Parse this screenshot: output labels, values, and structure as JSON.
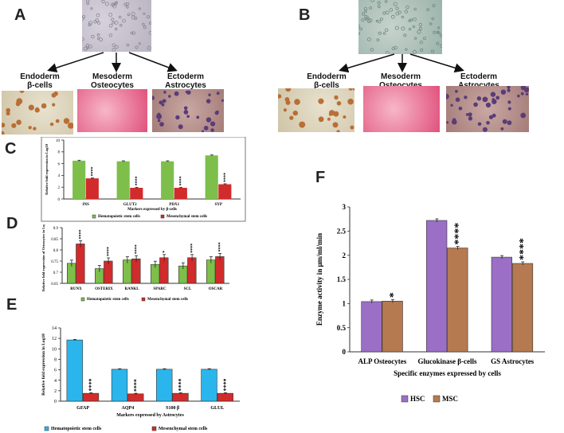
{
  "panels": {
    "A": {
      "letter": "A",
      "endoderm": {
        "germ": "Endoderm",
        "cell": "β-cells"
      },
      "mesoderm": {
        "germ": "Mesoderm",
        "cell": "Osteocytes"
      },
      "ectoderm": {
        "germ": "Ectoderm",
        "cell": "Astrocytes"
      }
    },
    "B": {
      "letter": "B",
      "endoderm": {
        "germ": "Endoderm",
        "cell": "β-cells"
      },
      "mesoderm": {
        "germ": "Mesoderm",
        "cell": "Osteocytes"
      },
      "ectoderm": {
        "germ": "Ectoderm",
        "cell": "Astrocytes"
      }
    },
    "C": {
      "letter": "C"
    },
    "D": {
      "letter": "D"
    },
    "E": {
      "letter": "E"
    },
    "F": {
      "letter": "F"
    }
  },
  "colors": {
    "green": "#7dbf4a",
    "red": "#d12b2b",
    "blue": "#2ab6ec",
    "purple": "#9b6fc6",
    "brown": "#b57a4f"
  },
  "chart_data": [
    {
      "id": "C",
      "type": "bar",
      "categories": [
        "INS",
        "GLUT2",
        "PDX1",
        "SYP"
      ],
      "series": [
        {
          "name": "Hematopoietic stem cells",
          "values": [
            6.5,
            6.4,
            6.4,
            7.4
          ]
        },
        {
          "name": "Mesenchymal stem cells",
          "values": [
            3.5,
            1.9,
            1.9,
            2.5
          ]
        }
      ],
      "significance": [
        "****",
        "****",
        "****",
        "****"
      ],
      "xlabel": "Markers expressed by β-cells",
      "ylabel": "Relative fold expression in Log10",
      "ylim": [
        0,
        10
      ],
      "yticks": [
        0,
        2,
        4,
        6,
        8,
        10
      ],
      "legend": "bottom"
    },
    {
      "id": "D",
      "type": "bar",
      "categories": [
        "RUNX",
        "OSTERIX",
        "RANKL",
        "SPARC",
        "SCL",
        "OSCAR"
      ],
      "series": [
        {
          "name": "Hematopoietic stem cells",
          "values": [
            0.74,
            0.716,
            0.755,
            0.735,
            0.728,
            0.755
          ]
        },
        {
          "name": "Mesenchymal stem cells",
          "values": [
            0.827,
            0.75,
            0.76,
            0.765,
            0.765,
            0.77
          ]
        }
      ],
      "significance": [
        "****",
        "****",
        "****",
        "*",
        "****",
        "****"
      ],
      "xlabel": "",
      "ylabel": "Relative fold expression of Osteocytes in Log10",
      "ylim": [
        0.65,
        0.9
      ],
      "yticks": [
        0.65,
        0.7,
        0.75,
        0.8,
        0.85,
        0.9
      ],
      "legend": "bottom"
    },
    {
      "id": "E",
      "type": "bar",
      "categories": [
        "GFAP",
        "AQP4",
        "S100 β",
        "GLUL"
      ],
      "series": [
        {
          "name": "Hematopoietic stem cells",
          "values": [
            11.7,
            6.1,
            6.1,
            6.1
          ]
        },
        {
          "name": "Mesenchymal stem cells",
          "values": [
            1.5,
            1.4,
            1.5,
            1.5
          ]
        }
      ],
      "significance": [
        "****",
        "****",
        "****",
        "****"
      ],
      "xlabel": "Markers expressed by Astrocytes",
      "ylabel": "Relative fold expression in Log10",
      "ylim": [
        0,
        14
      ],
      "yticks": [
        0,
        2,
        4,
        6,
        8,
        10,
        12,
        14
      ],
      "legend": "bottom"
    },
    {
      "id": "F",
      "type": "bar",
      "categories": [
        "ALP Osteocytes",
        "Glucokinase β-cells",
        "GS Astrocytes"
      ],
      "series": [
        {
          "name": "HSC",
          "values": [
            1.04,
            2.72,
            1.96
          ]
        },
        {
          "name": "MSC",
          "values": [
            1.05,
            2.15,
            1.83
          ]
        }
      ],
      "significance": [
        "*",
        "****",
        "****"
      ],
      "xlabel": "Specific enzymes expressed by cells",
      "ylabel": "Enzyme activity in μm/ml/min",
      "ylim": [
        0,
        3
      ],
      "yticks": [
        0,
        0.5,
        1,
        1.5,
        2,
        2.5,
        3
      ],
      "legend": "bottom"
    }
  ]
}
